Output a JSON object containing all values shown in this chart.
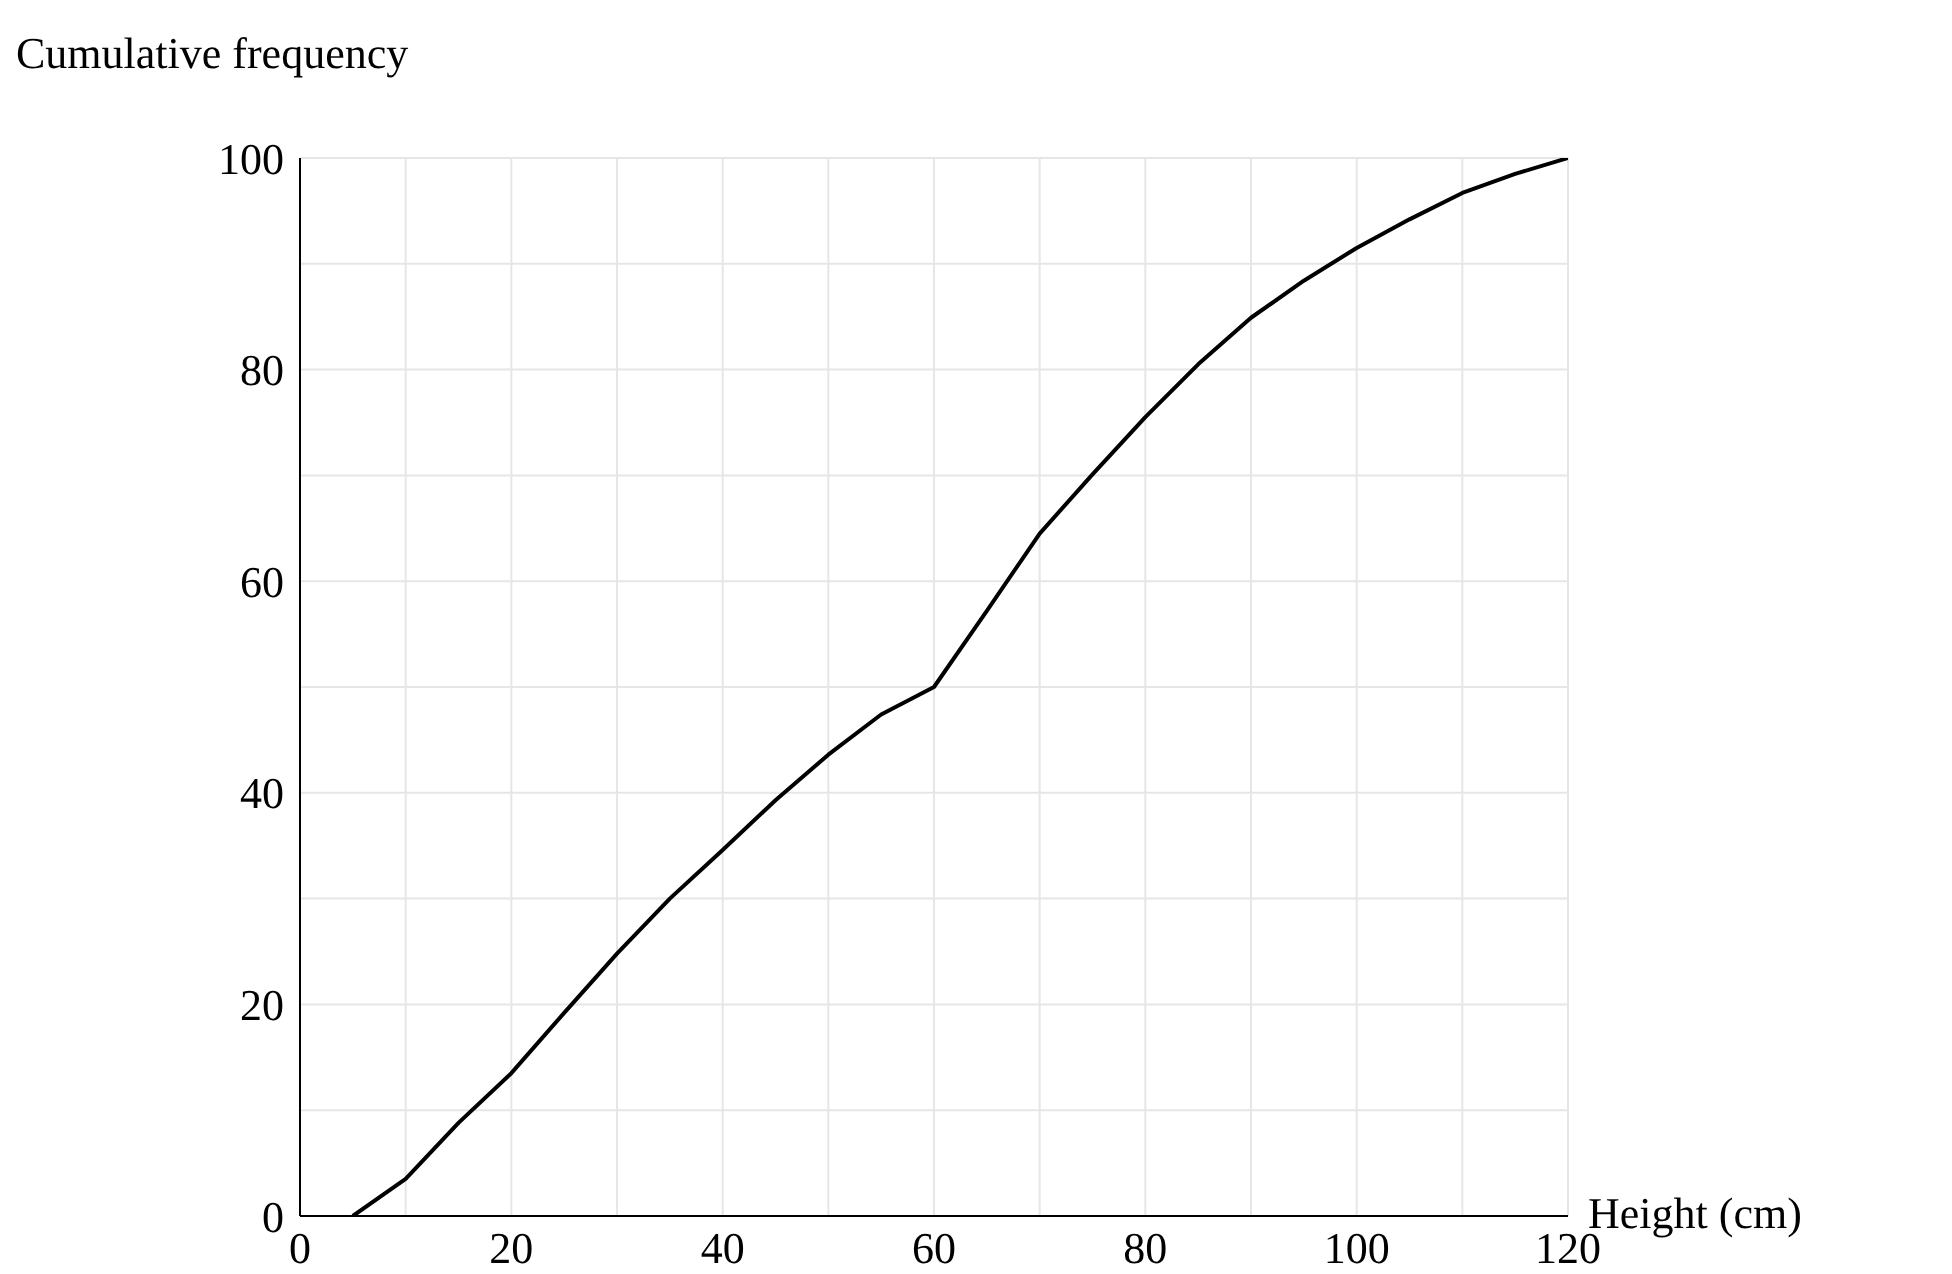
{
  "chart_data": {
    "type": "line",
    "xlabel": "Height (cm)",
    "ylabel": "Cumulative frequency",
    "x": [
      5,
      10,
      15,
      20,
      25,
      30,
      35,
      40,
      45,
      50,
      55,
      60,
      65,
      70,
      75,
      80,
      85,
      90,
      95,
      100,
      105,
      110,
      115,
      120
    ],
    "series": [
      {
        "color": "#000000",
        "values": [
          0,
          3.5,
          8.8,
          13.5,
          19.2,
          24.8,
          30,
          34.6,
          39.3,
          43.6,
          47.4,
          50,
          57.2,
          64.5,
          70.1,
          75.5,
          80.5,
          84.9,
          88.4,
          91.5,
          94.2,
          96.7,
          98.5,
          100
        ]
      }
    ],
    "xlim": [
      0,
      120
    ],
    "ylim": [
      0,
      100
    ],
    "xticks": [
      0,
      {
        "value": 10,
        "label": null
      },
      20,
      {
        "value": 30,
        "label": null
      },
      40,
      {
        "value": 50,
        "label": null
      },
      60,
      {
        "value": 70,
        "label": null
      },
      80,
      {
        "value": 90,
        "label": null
      },
      100,
      {
        "value": 110,
        "label": null
      },
      120
    ],
    "yticks": [
      0,
      {
        "value": 10,
        "label": null
      },
      20,
      {
        "value": 30,
        "label": null
      },
      40,
      {
        "value": 50,
        "label": null
      },
      60,
      {
        "value": 70,
        "label": null
      },
      80,
      {
        "value": 90,
        "label": null
      },
      100
    ],
    "grid": true,
    "marker": "none",
    "line_style": "solid"
  }
}
